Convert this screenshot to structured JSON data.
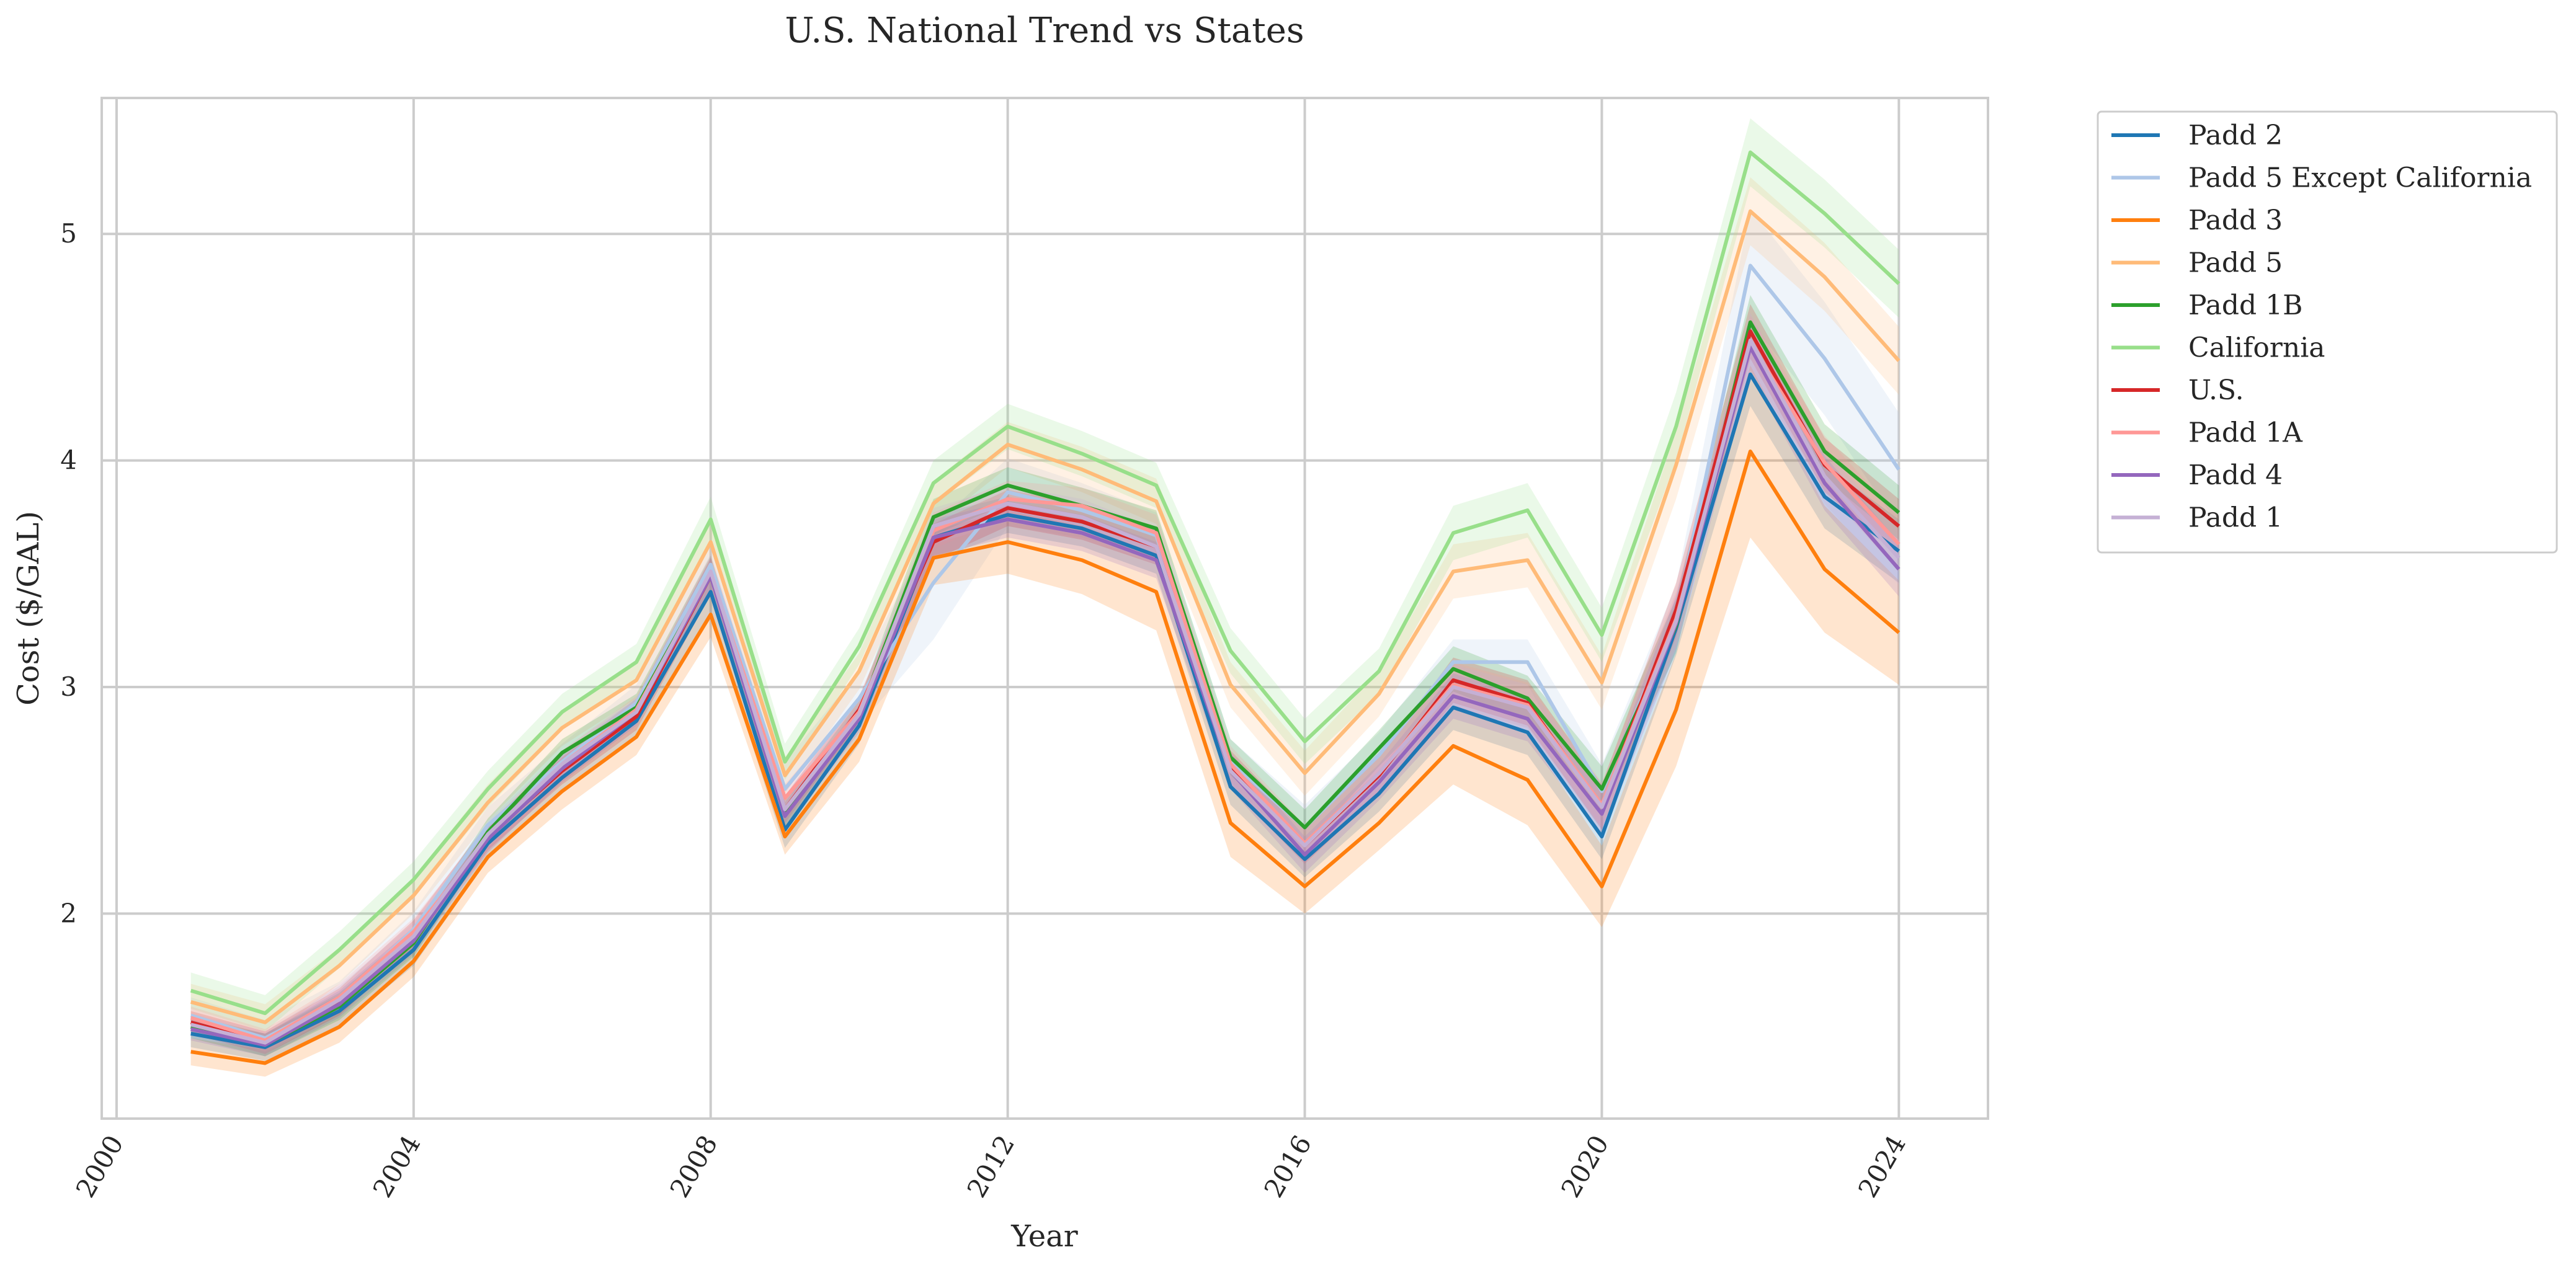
{
  "chart_data": {
    "type": "line",
    "title": "U.S. National Trend vs States",
    "xlabel": "Year",
    "ylabel": "Cost ($/GAL)",
    "xlim": [
      1999.8,
      2025.2
    ],
    "ylim": [
      1.095,
      5.6
    ],
    "x_ticks": [
      2000,
      2004,
      2008,
      2012,
      2016,
      2020,
      2024
    ],
    "x_tick_labels": [
      "2000",
      "2004",
      "2008",
      "2012",
      "2016",
      "2020",
      "2024"
    ],
    "y_ticks": [
      2,
      3,
      4,
      5
    ],
    "y_tick_labels": [
      "2",
      "3",
      "4",
      "5"
    ],
    "grid": true,
    "legend_position": "outside-top-right",
    "x": [
      2001,
      2002,
      2003,
      2004,
      2005,
      2006,
      2007,
      2008,
      2009,
      2010,
      2011,
      2012,
      2013,
      2014,
      2015,
      2016,
      2017,
      2018,
      2019,
      2020,
      2021,
      2022,
      2023,
      2024
    ],
    "series": [
      {
        "name": "Padd 2",
        "color": "#1f77b4",
        "values": [
          1.47,
          1.41,
          1.57,
          1.84,
          2.31,
          2.6,
          2.85,
          3.42,
          2.37,
          2.83,
          3.66,
          3.76,
          3.7,
          3.58,
          2.56,
          2.24,
          2.53,
          2.91,
          2.8,
          2.34,
          3.26,
          4.38,
          3.84,
          3.6
        ],
        "band": [
          0.06,
          0.06,
          0.07,
          0.07,
          0.07,
          0.07,
          0.07,
          0.1,
          0.08,
          0.08,
          0.1,
          0.08,
          0.08,
          0.08,
          0.08,
          0.08,
          0.08,
          0.1,
          0.1,
          0.1,
          0.12,
          0.14,
          0.14,
          0.14
        ]
      },
      {
        "name": "Padd 5 Except California",
        "color": "#aec7e8",
        "values": [
          1.55,
          1.45,
          1.62,
          1.93,
          2.39,
          2.67,
          2.93,
          3.54,
          2.55,
          2.95,
          3.46,
          3.86,
          3.78,
          3.67,
          2.67,
          2.38,
          2.7,
          3.11,
          3.11,
          2.54,
          3.3,
          4.86,
          4.45,
          3.96
        ],
        "band": [
          0.08,
          0.08,
          0.08,
          0.08,
          0.08,
          0.08,
          0.08,
          0.1,
          0.12,
          0.12,
          0.25,
          0.15,
          0.12,
          0.1,
          0.1,
          0.1,
          0.1,
          0.1,
          0.1,
          0.12,
          0.15,
          0.25,
          0.25,
          0.25
        ]
      },
      {
        "name": "Padd 3",
        "color": "#ff7f0e",
        "values": [
          1.39,
          1.34,
          1.5,
          1.79,
          2.25,
          2.54,
          2.78,
          3.32,
          2.34,
          2.77,
          3.57,
          3.64,
          3.56,
          3.42,
          2.4,
          2.12,
          2.4,
          2.74,
          2.59,
          2.12,
          2.9,
          4.04,
          3.52,
          3.24
        ],
        "band": [
          0.06,
          0.06,
          0.07,
          0.07,
          0.07,
          0.08,
          0.08,
          0.1,
          0.08,
          0.1,
          0.12,
          0.14,
          0.15,
          0.17,
          0.15,
          0.12,
          0.12,
          0.17,
          0.2,
          0.18,
          0.25,
          0.38,
          0.28,
          0.23
        ]
      },
      {
        "name": "Padd 5",
        "color": "#ffbb78",
        "values": [
          1.61,
          1.52,
          1.77,
          2.08,
          2.49,
          2.82,
          3.03,
          3.64,
          2.61,
          3.07,
          3.81,
          4.07,
          3.96,
          3.82,
          3.01,
          2.62,
          2.97,
          3.51,
          3.56,
          3.02,
          3.98,
          5.1,
          4.81,
          4.44
        ],
        "band": [
          0.08,
          0.08,
          0.08,
          0.08,
          0.08,
          0.08,
          0.08,
          0.1,
          0.08,
          0.08,
          0.1,
          0.1,
          0.1,
          0.1,
          0.1,
          0.1,
          0.1,
          0.12,
          0.12,
          0.12,
          0.15,
          0.15,
          0.15,
          0.15
        ]
      },
      {
        "name": "Padd 1B",
        "color": "#2ca02c",
        "values": [
          1.5,
          1.42,
          1.59,
          1.87,
          2.36,
          2.71,
          2.91,
          3.5,
          2.44,
          2.88,
          3.75,
          3.89,
          3.8,
          3.7,
          2.69,
          2.38,
          2.73,
          3.08,
          2.95,
          2.55,
          3.27,
          4.61,
          4.04,
          3.77
        ],
        "band": [
          0.05,
          0.05,
          0.06,
          0.06,
          0.06,
          0.06,
          0.06,
          0.08,
          0.06,
          0.06,
          0.08,
          0.08,
          0.08,
          0.08,
          0.08,
          0.08,
          0.08,
          0.1,
          0.1,
          0.1,
          0.12,
          0.12,
          0.12,
          0.12
        ]
      },
      {
        "name": "California",
        "color": "#98df8a",
        "values": [
          1.66,
          1.56,
          1.84,
          2.15,
          2.55,
          2.89,
          3.11,
          3.74,
          2.67,
          3.18,
          3.9,
          4.15,
          4.03,
          3.89,
          3.16,
          2.76,
          3.07,
          3.68,
          3.78,
          3.23,
          4.15,
          5.36,
          5.09,
          4.78
        ],
        "band": [
          0.08,
          0.08,
          0.08,
          0.08,
          0.08,
          0.08,
          0.08,
          0.1,
          0.08,
          0.08,
          0.1,
          0.1,
          0.1,
          0.1,
          0.1,
          0.1,
          0.1,
          0.12,
          0.12,
          0.12,
          0.15,
          0.15,
          0.15,
          0.15
        ]
      },
      {
        "name": "U.S.",
        "color": "#d62728",
        "values": [
          1.52,
          1.43,
          1.61,
          1.91,
          2.34,
          2.63,
          2.87,
          3.49,
          2.46,
          2.9,
          3.64,
          3.79,
          3.73,
          3.62,
          2.64,
          2.3,
          2.61,
          3.03,
          2.93,
          2.47,
          3.34,
          4.57,
          3.98,
          3.71
        ],
        "band": [
          0.05,
          0.05,
          0.06,
          0.06,
          0.06,
          0.06,
          0.06,
          0.08,
          0.06,
          0.06,
          0.08,
          0.08,
          0.08,
          0.08,
          0.08,
          0.08,
          0.08,
          0.1,
          0.1,
          0.1,
          0.12,
          0.12,
          0.12,
          0.12
        ]
      },
      {
        "name": "Padd 1A",
        "color": "#ff9896",
        "values": [
          1.54,
          1.44,
          1.63,
          1.92,
          2.33,
          2.66,
          2.9,
          3.5,
          2.51,
          2.89,
          3.69,
          3.83,
          3.8,
          3.68,
          2.66,
          2.31,
          2.62,
          3.01,
          2.92,
          2.48,
          3.3,
          4.52,
          3.99,
          3.63
        ],
        "band": [
          0.05,
          0.05,
          0.06,
          0.06,
          0.06,
          0.06,
          0.06,
          0.08,
          0.06,
          0.06,
          0.08,
          0.08,
          0.08,
          0.08,
          0.08,
          0.08,
          0.08,
          0.1,
          0.1,
          0.1,
          0.12,
          0.12,
          0.12,
          0.12
        ]
      },
      {
        "name": "Padd 4",
        "color": "#9467bd",
        "values": [
          1.49,
          1.42,
          1.6,
          1.88,
          2.33,
          2.64,
          2.89,
          3.49,
          2.43,
          2.86,
          3.66,
          3.74,
          3.68,
          3.56,
          2.63,
          2.26,
          2.58,
          2.96,
          2.86,
          2.44,
          3.28,
          4.5,
          3.9,
          3.52
        ],
        "band": [
          0.05,
          0.05,
          0.06,
          0.06,
          0.06,
          0.06,
          0.06,
          0.08,
          0.06,
          0.06,
          0.08,
          0.08,
          0.08,
          0.08,
          0.08,
          0.08,
          0.08,
          0.1,
          0.1,
          0.1,
          0.12,
          0.12,
          0.12,
          0.12
        ]
      },
      {
        "name": "Padd 1",
        "color": "#c5b0d5",
        "values": [
          1.51,
          1.43,
          1.62,
          1.9,
          2.35,
          2.66,
          2.89,
          3.51,
          2.46,
          2.88,
          3.71,
          3.81,
          3.75,
          3.62,
          2.63,
          2.3,
          2.62,
          3.0,
          2.91,
          2.47,
          3.29,
          4.53,
          3.93,
          3.57
        ],
        "band": [
          0.05,
          0.05,
          0.06,
          0.06,
          0.06,
          0.06,
          0.06,
          0.08,
          0.06,
          0.06,
          0.08,
          0.08,
          0.08,
          0.08,
          0.08,
          0.08,
          0.08,
          0.1,
          0.1,
          0.1,
          0.12,
          0.12,
          0.12,
          0.12
        ]
      }
    ]
  }
}
